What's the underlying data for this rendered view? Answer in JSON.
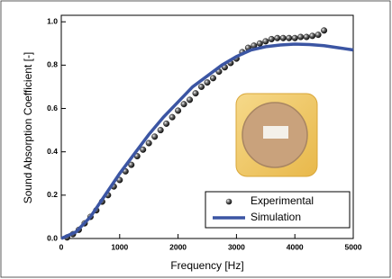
{
  "chart_data": {
    "type": "scatter-line",
    "x_label": "Frequency [Hz]",
    "y_label": "Sound Absorption Coefficient  [-]",
    "xlim": [
      0,
      5000
    ],
    "xticks": [
      0,
      1000,
      2000,
      3000,
      4000,
      5000
    ],
    "ylim": [
      0,
      1.03
    ],
    "yticks": [
      {
        "value": 0,
        "label": "0.0"
      },
      0.2,
      0.4,
      0.6,
      0.8,
      {
        "value": 1,
        "label": "1.0"
      }
    ],
    "legend": "lower right",
    "series": [
      {
        "name": "Experimental",
        "style": "scatter",
        "color": "#111111",
        "x": [
          100,
          200,
          300,
          400,
          500,
          600,
          700,
          800,
          900,
          1000,
          1100,
          1200,
          1300,
          1400,
          1500,
          1600,
          1700,
          1800,
          1900,
          2000,
          2100,
          2200,
          2300,
          2400,
          2500,
          2600,
          2700,
          2800,
          2900,
          3000,
          3100,
          3200,
          3300,
          3400,
          3500,
          3600,
          3700,
          3800,
          3900,
          4000,
          4100,
          4200,
          4300,
          4400,
          4500
        ],
        "values": [
          0.005,
          0.02,
          0.04,
          0.07,
          0.1,
          0.13,
          0.17,
          0.2,
          0.24,
          0.27,
          0.31,
          0.34,
          0.38,
          0.41,
          0.44,
          0.47,
          0.5,
          0.53,
          0.56,
          0.59,
          0.62,
          0.64,
          0.67,
          0.7,
          0.72,
          0.74,
          0.77,
          0.79,
          0.81,
          0.83,
          0.86,
          0.88,
          0.89,
          0.9,
          0.91,
          0.92,
          0.925,
          0.925,
          0.925,
          0.925,
          0.93,
          0.93,
          0.935,
          0.94,
          0.96
        ]
      },
      {
        "name": "Simulation",
        "style": "line",
        "color": "#3b55a3",
        "x": [
          0,
          250,
          500,
          750,
          1000,
          1250,
          1500,
          1750,
          2000,
          2250,
          2500,
          2750,
          3000,
          3250,
          3500,
          3750,
          4000,
          4250,
          4500,
          4750,
          5000
        ],
        "values": [
          0,
          0.03,
          0.1,
          0.2,
          0.3,
          0.39,
          0.48,
          0.56,
          0.63,
          0.7,
          0.75,
          0.8,
          0.84,
          0.87,
          0.885,
          0.893,
          0.897,
          0.895,
          0.89,
          0.88,
          0.87
        ]
      }
    ]
  }
}
